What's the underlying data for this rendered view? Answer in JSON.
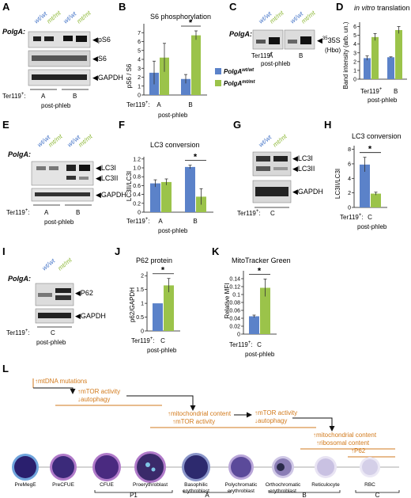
{
  "colors": {
    "wt": "#5b82c9",
    "mt": "#9bc34a",
    "arrow": "#d27a1c"
  },
  "gene_label": "PolgA:",
  "genotypes": {
    "wt": "wt/wt",
    "mt": "mt/mt"
  },
  "ter119": "Ter119",
  "ter119_sup": "+",
  "post_phleb": "post-phleb",
  "panels": {
    "A": {
      "letter": "A",
      "bands": [
        "pS6",
        "S6",
        "GAPDH"
      ],
      "groups": [
        "A",
        "B"
      ]
    },
    "B": {
      "letter": "B",
      "title": "S6 phosphorylation",
      "ylabel": "pS6 / S6",
      "sig": "*",
      "legend_wt": "PolgA",
      "legend_mt": "PolgA"
    },
    "C": {
      "letter": "C",
      "bands": [
        "35S",
        "(Hbα)"
      ],
      "groups": [
        "A",
        "B"
      ]
    },
    "D": {
      "letter": "D",
      "title_italic": "in vitro",
      "title_rest": " translation",
      "ylabel": "Band intensity (arb. un.)"
    },
    "E": {
      "letter": "E",
      "bands": [
        "LC3I",
        "LC3II",
        "GAPDH"
      ],
      "groups": [
        "A",
        "B"
      ]
    },
    "F": {
      "letter": "F",
      "title": "LC3 conversion",
      "ylabel": "LC3II/LC3I",
      "sig": "*"
    },
    "G": {
      "letter": "G",
      "bands": [
        "LC3I",
        "LC3II",
        "GAPDH"
      ],
      "groups": [
        "C"
      ]
    },
    "H": {
      "letter": "H",
      "title": "LC3 conversion",
      "ylabel": "LC3II/LC3I",
      "sig": "*"
    },
    "I": {
      "letter": "I",
      "bands": [
        "P62",
        "GAPDH"
      ],
      "groups": [
        "C"
      ]
    },
    "J": {
      "letter": "J",
      "title": "P62 protein",
      "ylabel": "p62/GAPDH",
      "sig": "*"
    },
    "K": {
      "letter": "K",
      "title": "MitoTracker Green",
      "ylabel": "Relative MFI",
      "sig": "*"
    },
    "L": {
      "letter": "L"
    }
  },
  "chart_data": [
    {
      "panel": "B",
      "type": "bar",
      "categories": [
        "A",
        "B"
      ],
      "series": [
        {
          "name": "PolgA wt/wt",
          "values": [
            2.5,
            1.8
          ]
        },
        {
          "name": "PolgA mt/mt",
          "values": [
            4.2,
            6.7
          ]
        }
      ],
      "errors": [
        [
          1.3,
          0.5
        ],
        [
          1.6,
          0.5
        ]
      ],
      "title": "S6 phosphorylation",
      "ylabel": "pS6 / S6",
      "ylim": [
        0,
        8
      ],
      "yticks": [
        0,
        1,
        2,
        3,
        4,
        5,
        6,
        7
      ]
    },
    {
      "panel": "D",
      "type": "bar",
      "categories": [
        "A",
        "B"
      ],
      "series": [
        {
          "values": [
            2.4,
            2.5
          ]
        },
        {
          "values": [
            4.8,
            5.6
          ]
        }
      ],
      "errors": [
        [
          0.25,
          0.05
        ],
        [
          0.4,
          0.4
        ]
      ],
      "ylabel": "Band intensity (arb. un.)",
      "ylim": [
        0,
        6.5
      ],
      "yticks": [
        0,
        1,
        2,
        3,
        4,
        5,
        6
      ]
    },
    {
      "panel": "F",
      "type": "bar",
      "categories": [
        "A",
        "B"
      ],
      "series": [
        {
          "values": [
            0.65,
            1.02
          ]
        },
        {
          "values": [
            0.68,
            0.35
          ]
        }
      ],
      "errors": [
        [
          0.08,
          0.04
        ],
        [
          0.07,
          0.18
        ]
      ],
      "title": "LC3 conversion",
      "ylabel": "LC3II/LC3I",
      "ylim": [
        0,
        1.25
      ],
      "yticks": [
        0,
        0.2,
        0.4,
        0.6,
        0.8,
        1.0,
        1.2
      ],
      "yticklabels": [
        "0",
        "0.2",
        "0.4",
        "0.6",
        "0.8",
        "1.0",
        "1.2"
      ]
    },
    {
      "panel": "H",
      "type": "bar",
      "categories": [
        "C"
      ],
      "series": [
        {
          "values": [
            5.9
          ]
        },
        {
          "values": [
            1.9
          ]
        }
      ],
      "errors": [
        [
          1.0
        ],
        [
          0.2
        ]
      ],
      "title": "LC3 conversion",
      "ylabel": "LC3II/LC3I",
      "ylim": [
        0,
        8.5
      ],
      "yticks": [
        0,
        2,
        4,
        6,
        8
      ]
    },
    {
      "panel": "J",
      "type": "bar",
      "categories": [
        "C"
      ],
      "series": [
        {
          "values": [
            1.0
          ]
        },
        {
          "values": [
            1.65
          ]
        }
      ],
      "errors": [
        [
          0.0
        ],
        [
          0.25
        ]
      ],
      "title": "P62 protein",
      "ylabel": "p62/GAPDH",
      "ylim": [
        0,
        2.15
      ],
      "yticks": [
        0,
        0.5,
        1,
        1.5,
        2
      ],
      "yticklabels": [
        "0",
        "0.5",
        "1",
        "1.5",
        "2"
      ]
    },
    {
      "panel": "K",
      "type": "bar",
      "categories": [
        "C"
      ],
      "series": [
        {
          "values": [
            0.045
          ]
        },
        {
          "values": [
            0.117
          ]
        }
      ],
      "errors": [
        [
          0.003
        ],
        [
          0.022
        ]
      ],
      "title": "MitoTracker Green",
      "ylabel": "Relative MFI",
      "ylim": [
        0,
        0.16
      ],
      "yticks": [
        0,
        0.02,
        0.04,
        0.06,
        0.08,
        0.1,
        0.12,
        0.14
      ],
      "yticklabels": [
        "0",
        "0.02",
        "0.04",
        "0.06",
        "0.08",
        "0.1",
        "0.12",
        "0.14"
      ]
    }
  ],
  "pathway": {
    "events": [
      "mtDNA mutations",
      "mTOR activity",
      "autophagy",
      "mitochondrial content",
      "mTOR activity",
      "mTOR activity",
      "autophagy",
      "mitochondrial content",
      "ribosomal content",
      "P62"
    ],
    "cells": [
      [
        "PreMegE"
      ],
      [
        "PreCFUE"
      ],
      [
        "CFUE"
      ],
      [
        "Proerythroblast"
      ],
      [
        "Basophilic",
        "erythroblast"
      ],
      [
        "Polychromatic",
        "erythroblast"
      ],
      [
        "Orthochromatic",
        "erythroblast"
      ],
      [
        "Reticulocyte"
      ],
      [
        "RBC"
      ]
    ],
    "stages": [
      "P1",
      "A",
      "B",
      "C"
    ]
  }
}
